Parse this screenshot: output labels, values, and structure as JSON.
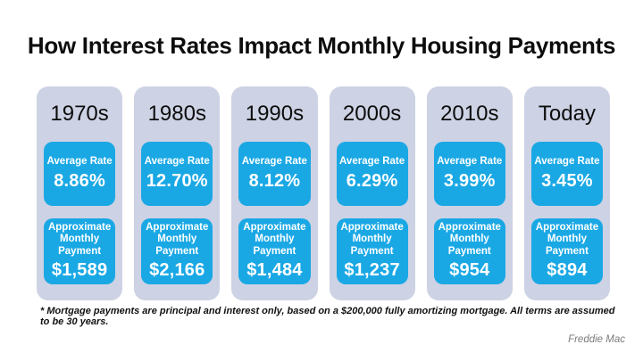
{
  "slide": {
    "title": "How Interest Rates Impact Monthly Housing Payments",
    "footnote": "* Mortgage payments are principal and interest only, based on a $200,000 fully amortizing mortgage. All terms are assumed to be 30 years.",
    "attribution": "Freddie Mac"
  },
  "labels": {
    "rate": "Average Rate",
    "payment": "Approximate Monthly Payment"
  },
  "columns": [
    {
      "era": "1970s",
      "rate_value": "8.86%",
      "payment_value": "$1,589"
    },
    {
      "era": "1980s",
      "rate_value": "12.70%",
      "payment_value": "$2,166"
    },
    {
      "era": "1990s",
      "rate_value": "8.12%",
      "payment_value": "$1,484"
    },
    {
      "era": "2000s",
      "rate_value": "6.29%",
      "payment_value": "$1,237"
    },
    {
      "era": "2010s",
      "rate_value": "3.99%",
      "payment_value": "$954"
    },
    {
      "era": "Today",
      "rate_value": "3.45%",
      "payment_value": "$894"
    }
  ],
  "colors": {
    "accent_blue": "#1aa8e5",
    "card_lavender": "#cdd2e4",
    "title_text": "#0d0d0d",
    "box_text": "#ffffff",
    "attribution_gray": "#7b7b7b"
  },
  "chart_data": {
    "type": "table",
    "title": "How Interest Rates Impact Monthly Housing Payments",
    "categories": [
      "1970s",
      "1980s",
      "1990s",
      "2000s",
      "2010s",
      "Today"
    ],
    "series": [
      {
        "name": "Average Rate (%)",
        "values": [
          8.86,
          12.7,
          8.12,
          6.29,
          3.99,
          3.45
        ]
      },
      {
        "name": "Approximate Monthly Payment ($)",
        "values": [
          1589,
          2166,
          1484,
          1237,
          954,
          894
        ]
      }
    ],
    "annotations": [
      "* Mortgage payments are principal and interest only, based on a $200,000 fully amortizing mortgage. All terms are assumed to be 30 years.",
      "Source: Freddie Mac"
    ]
  }
}
